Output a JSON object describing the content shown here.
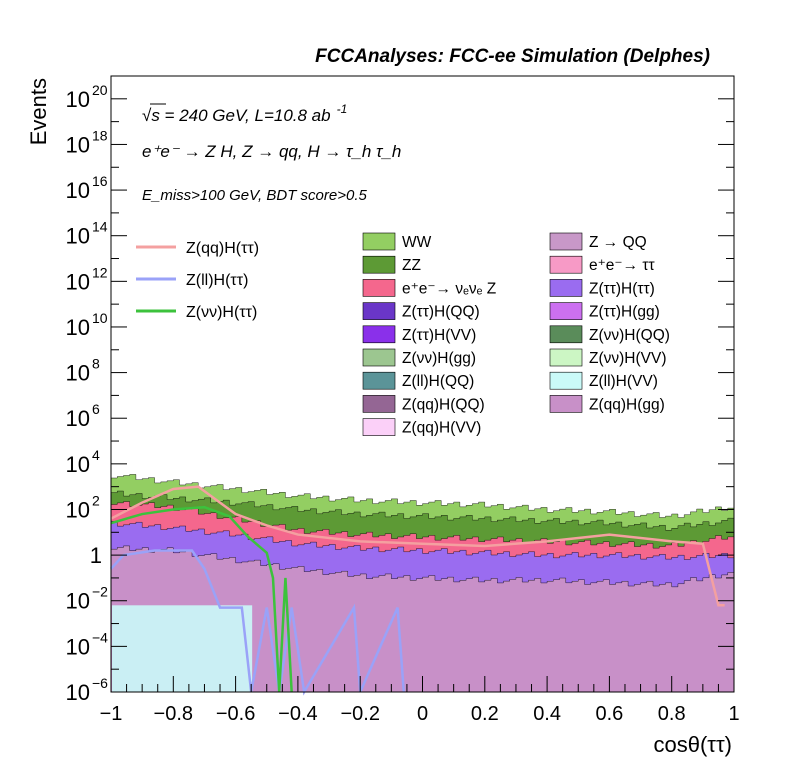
{
  "chart_data": {
    "type": "histogram-stacked",
    "title": "FCCAnalyses: FCC-ee Simulation (Delphes)",
    "xlabel": "cosθ(ττ)",
    "ylabel": "Events",
    "xlim": [
      -1,
      1
    ],
    "ylim": [
      1e-06,
      1e+21
    ],
    "log_y": true,
    "grid": false,
    "x_ticks": [
      {
        "v": -1,
        "label": "−1"
      },
      {
        "v": -0.8,
        "label": "−0.8"
      },
      {
        "v": -0.6,
        "label": "−0.6"
      },
      {
        "v": -0.4,
        "label": "−0.4"
      },
      {
        "v": -0.2,
        "label": "−0.2"
      },
      {
        "v": 0,
        "label": "0"
      },
      {
        "v": 0.2,
        "label": "0.2"
      },
      {
        "v": 0.4,
        "label": "0.4"
      },
      {
        "v": 0.6,
        "label": "0.6"
      },
      {
        "v": 0.8,
        "label": "0.8"
      },
      {
        "v": 1,
        "label": "1"
      }
    ],
    "y_ticks": [
      {
        "exp": -6,
        "base": "10",
        "sup": "−6"
      },
      {
        "exp": -4,
        "base": "10",
        "sup": "−4"
      },
      {
        "exp": -2,
        "base": "10",
        "sup": "−2"
      },
      {
        "exp": 0,
        "base": "1",
        "sup": ""
      },
      {
        "exp": 2,
        "base": "10",
        "sup": "2"
      },
      {
        "exp": 4,
        "base": "10",
        "sup": "4"
      },
      {
        "exp": 6,
        "base": "10",
        "sup": "6"
      },
      {
        "exp": 8,
        "base": "10",
        "sup": "8"
      },
      {
        "exp": 10,
        "base": "10",
        "sup": "10"
      },
      {
        "exp": 12,
        "base": "10",
        "sup": "12"
      },
      {
        "exp": 14,
        "base": "10",
        "sup": "14"
      },
      {
        "exp": 16,
        "base": "10",
        "sup": "16"
      },
      {
        "exp": 18,
        "base": "10",
        "sup": "18"
      },
      {
        "exp": 20,
        "base": "10",
        "sup": "20"
      }
    ],
    "annotations": {
      "energy": "√s = 240 GeV, L=10.8 ab",
      "energy_sup": "-1",
      "process": "e⁺e⁻ → Z H, Z → qq, H → τ_h τ_h",
      "cuts": "E_miss>100 GeV, BDT score>0.5"
    },
    "signal_legend": [
      {
        "name": "Z(qq)H(ττ)",
        "color": "#f4a0a0"
      },
      {
        "name": "Z(ll)H(ττ)",
        "color": "#9aa2f8"
      },
      {
        "name": "Z(νν)H(ττ)",
        "color": "#3cc23c"
      }
    ],
    "background_legend": [
      {
        "name": "WW",
        "color": "#93ce62"
      },
      {
        "name": "Z → QQ",
        "color": "#c898c8"
      },
      {
        "name": "ZZ",
        "color": "#5d9a35"
      },
      {
        "name": "e⁺e⁻→ ττ",
        "color": "#f79ac6"
      },
      {
        "name": "e⁺e⁻→ νₑνₑ Z",
        "color": "#f4678d"
      },
      {
        "name": "Z(ττ)H(ττ)",
        "color": "#9a6cf0"
      },
      {
        "name": "Z(ττ)H(QQ)",
        "color": "#6a36c8"
      },
      {
        "name": "Z(ττ)H(gg)",
        "color": "#cc70f0"
      },
      {
        "name": "Z(ττ)H(VV)",
        "color": "#8a30ea"
      },
      {
        "name": "Z(νν)H(QQ)",
        "color": "#5a8c5a"
      },
      {
        "name": "Z(νν)H(gg)",
        "color": "#9cc690"
      },
      {
        "name": "Z(νν)H(VV)",
        "color": "#ccf6c4"
      },
      {
        "name": "Z(ll)H(QQ)",
        "color": "#5b9498"
      },
      {
        "name": "Z(ll)H(VV)",
        "color": "#cafaf8"
      },
      {
        "name": "Z(qq)H(QQ)",
        "color": "#946694"
      },
      {
        "name": "Z(qq)H(gg)",
        "color": "#c890c8"
      },
      {
        "name": "Z(qq)H(VV)",
        "color": "#fbd0f8"
      }
    ],
    "stack_cumulative_log10_by_x": [
      {
        "x": -0.98,
        "WW": 3.5,
        "ZZ": 2.7,
        "nunuZ": 2.3,
        "ZttHtt": 1.4,
        "ZqqHgg": 0.3
      },
      {
        "x": -0.8,
        "WW": 3.2,
        "ZZ": 2.5,
        "nunuZ": 2.1,
        "ZttHtt": 1.2,
        "ZqqHgg": 0.2
      },
      {
        "x": -0.6,
        "WW": 2.9,
        "ZZ": 2.3,
        "nunuZ": 1.6,
        "ZttHtt": 0.9,
        "ZqqHgg": -0.2
      },
      {
        "x": -0.4,
        "WW": 2.6,
        "ZZ": 2.0,
        "nunuZ": 1.1,
        "ZttHtt": 0.5,
        "ZqqHgg": -0.6
      },
      {
        "x": -0.2,
        "WW": 2.4,
        "ZZ": 1.8,
        "nunuZ": 0.9,
        "ZttHtt": 0.3,
        "ZqqHgg": -0.9
      },
      {
        "x": 0.0,
        "WW": 2.3,
        "ZZ": 1.7,
        "nunuZ": 0.8,
        "ZttHtt": 0.2,
        "ZqqHgg": -1.0
      },
      {
        "x": 0.2,
        "WW": 2.2,
        "ZZ": 1.6,
        "nunuZ": 0.7,
        "ZttHtt": 0.1,
        "ZqqHgg": -1.1
      },
      {
        "x": 0.4,
        "WW": 2.0,
        "ZZ": 1.5,
        "nunuZ": 0.6,
        "ZttHtt": 0.0,
        "ZqqHgg": -1.1
      },
      {
        "x": 0.6,
        "WW": 1.9,
        "ZZ": 1.4,
        "nunuZ": 0.5,
        "ZttHtt": 0.0,
        "ZqqHgg": -1.2
      },
      {
        "x": 0.8,
        "WW": 1.7,
        "ZZ": 1.2,
        "nunuZ": 0.4,
        "ZttHtt": -0.1,
        "ZqqHgg": -1.3
      },
      {
        "x": 0.98,
        "WW": 2.1,
        "ZZ": 1.5,
        "nunuZ": 0.8,
        "ZttHtt": 0.0,
        "ZqqHgg": -0.8
      }
    ],
    "signal_curves_log10": {
      "Z(qq)H(ττ)": [
        [
          -1,
          1.6
        ],
        [
          -0.9,
          2.3
        ],
        [
          -0.8,
          2.9
        ],
        [
          -0.72,
          3.0
        ],
        [
          -0.66,
          2.4
        ],
        [
          -0.6,
          1.8
        ],
        [
          -0.5,
          1.3
        ],
        [
          -0.4,
          0.9
        ],
        [
          -0.2,
          0.6
        ],
        [
          0.0,
          0.5
        ],
        [
          0.2,
          0.4
        ],
        [
          0.4,
          0.6
        ],
        [
          0.6,
          0.9
        ],
        [
          0.8,
          0.6
        ],
        [
          0.9,
          0.5
        ],
        [
          0.95,
          -2.2
        ],
        [
          0.97,
          -2.2
        ]
      ],
      "Z(ll)H(ττ)": [
        [
          -1,
          -0.6
        ],
        [
          -0.96,
          0.0
        ],
        [
          -0.86,
          0.2
        ],
        [
          -0.74,
          0.2
        ],
        [
          -0.7,
          -0.6
        ],
        [
          -0.65,
          -2.3
        ],
        [
          -0.58,
          -2.3
        ],
        [
          -0.55,
          -6.1
        ],
        [
          -0.5,
          -2.3
        ],
        [
          -0.46,
          -6.1
        ],
        [
          -0.42,
          -2.3
        ],
        [
          -0.38,
          -6.1
        ],
        [
          -0.22,
          -2.3
        ],
        [
          -0.2,
          -6.1
        ],
        [
          -0.08,
          -2.3
        ],
        [
          -0.06,
          -6.1
        ]
      ],
      "Z(νν)H(ττ)": [
        [
          -1,
          1.4
        ],
        [
          -0.9,
          1.8
        ],
        [
          -0.8,
          2.0
        ],
        [
          -0.7,
          2.1
        ],
        [
          -0.62,
          1.7
        ],
        [
          -0.56,
          0.8
        ],
        [
          -0.5,
          0.1
        ],
        [
          -0.48,
          -1.0
        ],
        [
          -0.46,
          -6.1
        ],
        [
          -0.44,
          -1.0
        ],
        [
          -0.42,
          -6.1
        ]
      ]
    }
  }
}
